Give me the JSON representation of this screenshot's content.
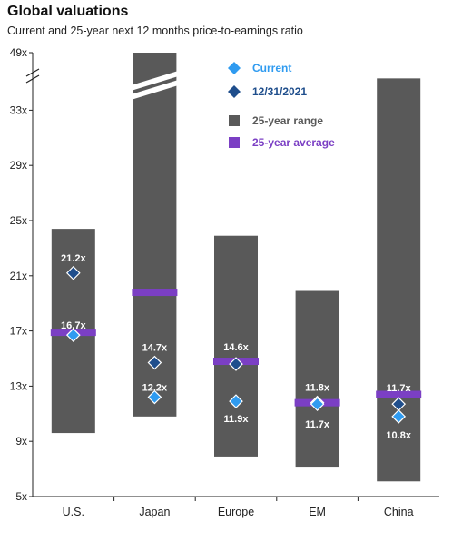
{
  "title": "Global valuations",
  "subtitle": "Current and 25-year next 12 months price-to-earnings ratio",
  "colors": {
    "range": "#595959",
    "average": "#7b3fc4",
    "current": "#2f9bf0",
    "dec2021": "#1f4e8c",
    "axis": "#222222",
    "label": "#ffffff"
  },
  "chart_data": {
    "type": "bar",
    "categories": [
      "U.S.",
      "Japan",
      "Europe",
      "EM",
      "China"
    ],
    "y_ticks": [
      "5x",
      "9x",
      "13x",
      "17x",
      "21x",
      "25x",
      "29x",
      "33x",
      "49x"
    ],
    "ylim": [
      5,
      49
    ],
    "axis_break": [
      35,
      45
    ],
    "series": [
      {
        "name": "25-year range",
        "low": [
          9.6,
          10.8,
          7.9,
          7.1,
          6.1
        ],
        "high": [
          24.4,
          49,
          23.9,
          19.9,
          35.5
        ]
      },
      {
        "name": "25-year average",
        "values": [
          16.9,
          19.8,
          14.8,
          11.8,
          12.4
        ]
      },
      {
        "name": "Current",
        "values": [
          16.7,
          12.2,
          11.9,
          11.7,
          10.8
        ],
        "labels": [
          "16.7x",
          "12.2x",
          "11.9x",
          "11.7x",
          "10.8x"
        ]
      },
      {
        "name": "12/31/2021",
        "values": [
          21.2,
          14.7,
          14.6,
          11.8,
          11.7
        ],
        "labels": [
          "21.2x",
          "14.7x",
          "14.6x",
          "11.8x",
          "11.7x"
        ]
      }
    ],
    "legend": [
      "Current",
      "12/31/2021",
      "25-year range",
      "25-year average"
    ],
    "legend_position": "top-right",
    "grid": false
  }
}
